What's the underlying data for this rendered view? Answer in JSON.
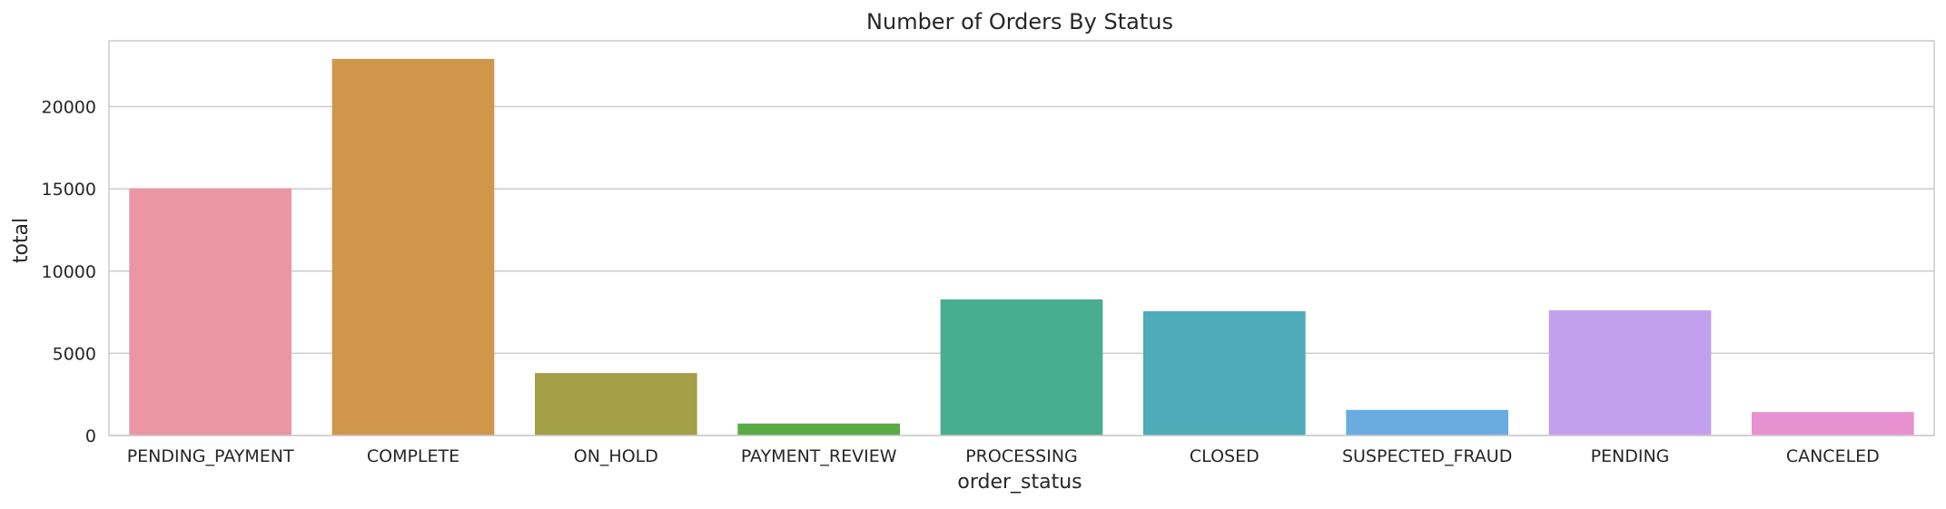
{
  "chart_data": {
    "type": "bar",
    "title": "Number of Orders By Status",
    "xlabel": "order_status",
    "ylabel": "total",
    "categories": [
      "PENDING_PAYMENT",
      "COMPLETE",
      "ON_HOLD",
      "PAYMENT_REVIEW",
      "PROCESSING",
      "CLOSED",
      "SUSPECTED_FRAUD",
      "PENDING",
      "CANCELED"
    ],
    "values": [
      15030,
      22899,
      3798,
      729,
      8275,
      7556,
      1558,
      7610,
      1428
    ],
    "colors": [
      "#ea96a3",
      "#d0964c",
      "#a39f47",
      "#5aab45",
      "#49ad8f",
      "#4eabb7",
      "#6aabe2",
      "#c3a0eb",
      "#e891d1"
    ],
    "ylim": [
      0,
      24000
    ],
    "yticks": [
      0,
      5000,
      10000,
      15000,
      20000
    ],
    "grid": "y",
    "style": "seaborn-whitegrid"
  }
}
